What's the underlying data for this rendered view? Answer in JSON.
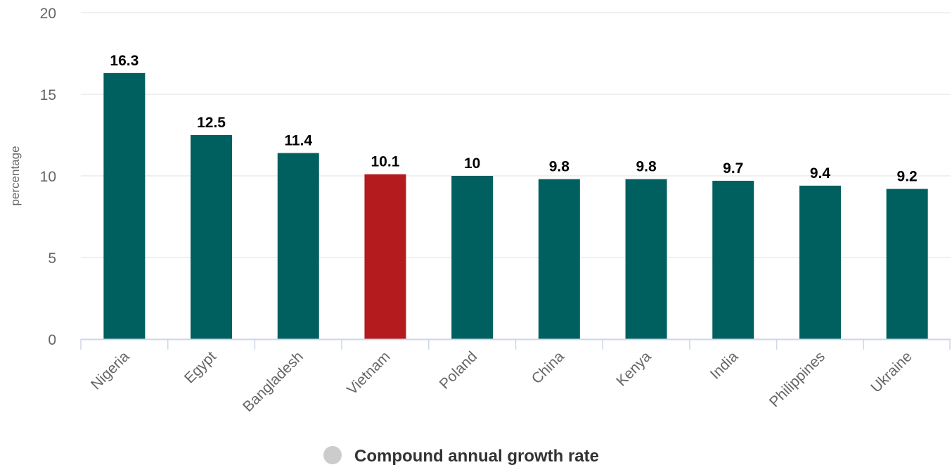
{
  "chart_data": {
    "type": "bar",
    "title": "",
    "xlabel": "",
    "ylabel": "percentage",
    "ylim": [
      0,
      20
    ],
    "yticks": [
      0,
      5,
      10,
      15,
      20
    ],
    "grid": true,
    "legend_position": "bottom",
    "categories": [
      "Nigeria",
      "Egypt",
      "Bangladesh",
      "Vietnam",
      "Poland",
      "China",
      "Kenya",
      "India",
      "Philippines",
      "Ukraine"
    ],
    "series": [
      {
        "name": "Compound annual growth rate",
        "values": [
          16.3,
          12.5,
          11.4,
          10.1,
          10,
          9.8,
          9.8,
          9.7,
          9.4,
          9.2
        ],
        "data_labels": [
          "16.3",
          "12.5",
          "11.4",
          "10.1",
          "10",
          "9.8",
          "9.8",
          "9.7",
          "9.4",
          "9.2"
        ]
      }
    ],
    "highlight_category": "Vietnam",
    "colors": {
      "bar": "#005f5f",
      "highlight": "#b31b1e",
      "grid": "#e0e0e0",
      "axis": "#ccd6eb",
      "legend_marker": "#cccccc"
    }
  }
}
